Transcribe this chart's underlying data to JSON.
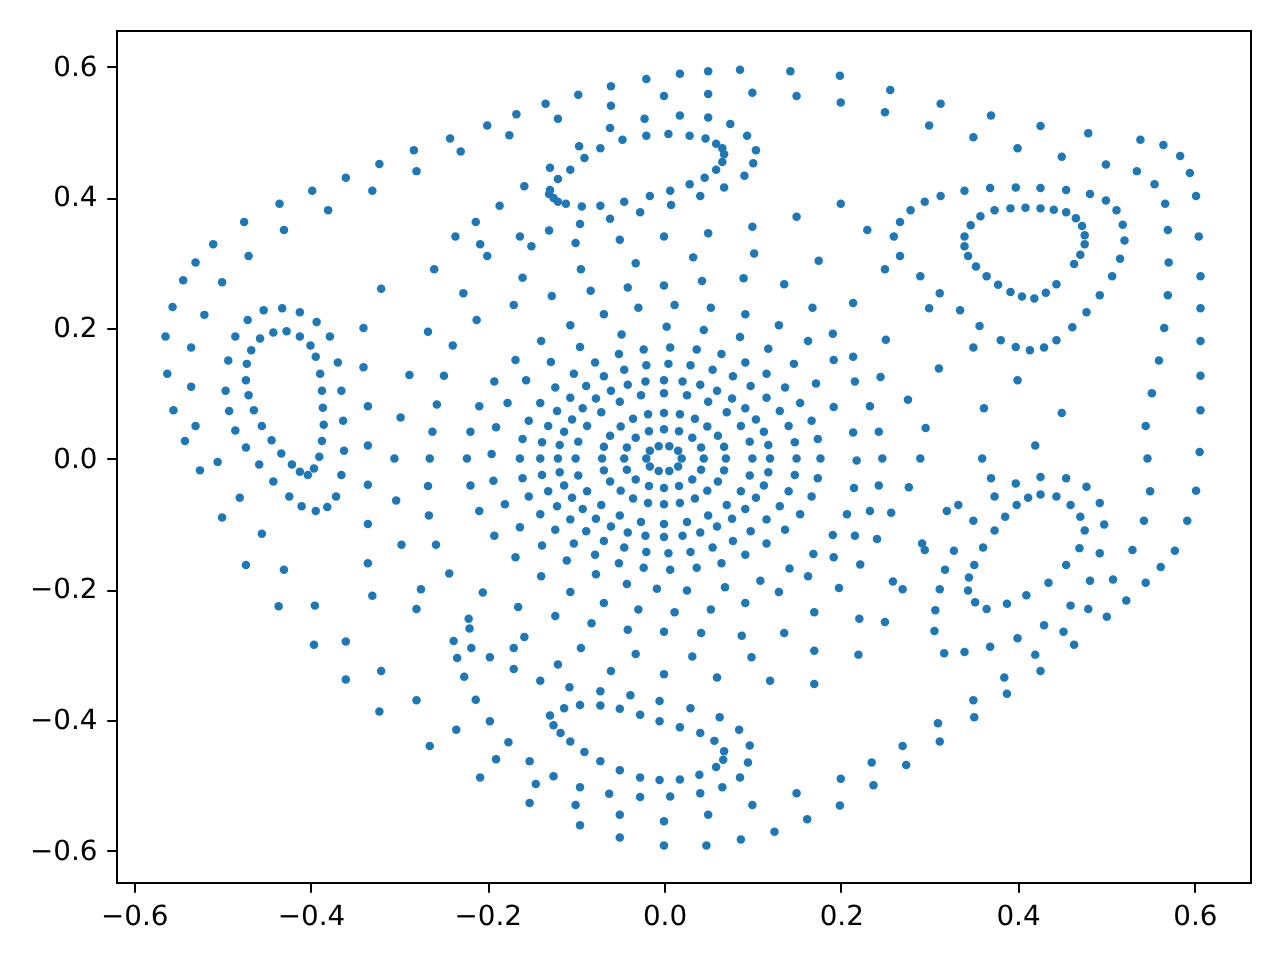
{
  "chart_data": {
    "type": "scatter",
    "marker": "circle",
    "grid": false,
    "xlim": [
      -0.62,
      0.663
    ],
    "ylim": [
      -0.648,
      0.656
    ],
    "xticks": [
      {
        "value": -0.6,
        "label": "−0.6"
      },
      {
        "value": -0.4,
        "label": "−0.4"
      },
      {
        "value": -0.2,
        "label": "−0.2"
      },
      {
        "value": 0,
        "label": "0.0"
      },
      {
        "value": 0.2,
        "label": "0.2"
      },
      {
        "value": 0.4,
        "label": "0.4"
      },
      {
        "value": 0.6,
        "label": "0.6"
      }
    ],
    "yticks": [
      {
        "value": -0.6,
        "label": "−0.6"
      },
      {
        "value": -0.4,
        "label": "−0.4"
      },
      {
        "value": -0.2,
        "label": "−0.2"
      },
      {
        "value": 0,
        "label": "0.0"
      },
      {
        "value": 0.2,
        "label": "0.2"
      },
      {
        "value": 0.4,
        "label": "0.4"
      },
      {
        "value": 0.6,
        "label": "0.6"
      }
    ],
    "series": [
      {
        "color": "#1f77b4",
        "x": [
          0.02,
          0.016,
          0.006,
          -0.006,
          -0.016,
          -0.02,
          -0.016,
          -0.006,
          0.006,
          0.016
        ],
        "values": [
          0,
          0.012,
          0.019,
          0.019,
          0.012,
          0,
          -0.012,
          -0.019,
          -0.019,
          -0.012
        ]
      },
      {
        "color": "#1f77b4",
        "x": [
          0.045,
          0.042,
          0.032,
          0.017,
          0,
          -0.017,
          -0.032,
          -0.042,
          -0.045,
          -0.042,
          -0.032,
          -0.017,
          0,
          0.017,
          0.032,
          0.042
        ],
        "values": [
          0,
          0.017,
          0.032,
          0.042,
          0.045,
          0.042,
          0.032,
          0.017,
          0,
          -0.017,
          -0.032,
          -0.042,
          -0.045,
          -0.042,
          -0.032,
          -0.017
        ]
      },
      {
        "color": "#1f77b4",
        "x": [
          0.07,
          0.068,
          0.061,
          0.049,
          0.035,
          0.018,
          0,
          -0.018,
          -0.035,
          -0.049,
          -0.061,
          -0.068,
          -0.07,
          -0.068,
          -0.061,
          -0.049,
          -0.035,
          -0.018,
          0,
          0.018,
          0.035,
          0.049,
          0.061,
          0.068
        ],
        "values": [
          0,
          0.018,
          0.035,
          0.049,
          0.061,
          0.068,
          0.07,
          0.068,
          0.061,
          0.049,
          0.035,
          0.018,
          0,
          -0.018,
          -0.035,
          -0.049,
          -0.061,
          -0.068,
          -0.07,
          -0.068,
          -0.061,
          -0.049,
          -0.035,
          -0.018
        ]
      },
      {
        "color": "#1f77b4",
        "x": [
          0.1,
          0.097,
          0.087,
          0.071,
          0.05,
          0.026,
          0,
          -0.026,
          -0.05,
          -0.071,
          -0.087,
          -0.097,
          -0.1,
          -0.097,
          -0.087,
          -0.071,
          -0.05,
          -0.026,
          0,
          0.026,
          0.05,
          0.071,
          0.087,
          0.097
        ],
        "values": [
          0,
          0.026,
          0.05,
          0.071,
          0.087,
          0.097,
          0.1,
          0.097,
          0.087,
          0.071,
          0.05,
          0.026,
          0,
          -0.026,
          -0.05,
          -0.071,
          -0.087,
          -0.097,
          -0.1,
          -0.097,
          -0.087,
          -0.071,
          -0.05,
          -0.026
        ]
      },
      {
        "color": "#1f77b4",
        "x": [
          0.12,
          0.118,
          0.113,
          0.104,
          0.092,
          0.077,
          0.06,
          0.041,
          0.021,
          0,
          -0.021,
          -0.041,
          -0.06,
          -0.077,
          -0.092,
          -0.104,
          -0.113,
          -0.118,
          -0.12,
          -0.118,
          -0.113,
          -0.104,
          -0.092,
          -0.077,
          -0.06,
          -0.041,
          -0.021,
          0,
          0.021,
          0.041,
          0.06,
          0.077,
          0.092,
          0.104,
          0.113,
          0.118
        ],
        "values": [
          0,
          0.021,
          0.041,
          0.06,
          0.077,
          0.092,
          0.104,
          0.113,
          0.118,
          0.12,
          0.118,
          0.113,
          0.104,
          0.092,
          0.077,
          0.06,
          0.041,
          0.021,
          0,
          -0.021,
          -0.041,
          -0.06,
          -0.077,
          -0.092,
          -0.104,
          -0.113,
          -0.118,
          -0.12,
          -0.118,
          -0.113,
          -0.104,
          -0.092,
          -0.077,
          -0.06,
          -0.041,
          -0.021
        ]
      },
      {
        "color": "#1f77b4",
        "x": [
          0.15,
          0.148,
          0.141,
          0.131,
          0.116,
          0.098,
          0.078,
          0.055,
          0.03,
          0.005,
          -0.02,
          -0.045,
          -0.068,
          -0.088,
          -0.106,
          -0.121,
          -0.131,
          -0.138,
          -0.14,
          -0.138,
          -0.131,
          -0.121,
          -0.106,
          -0.088,
          -0.068,
          -0.045,
          -0.02,
          0.005,
          0.03,
          0.055,
          0.078,
          0.098,
          0.116,
          0.131,
          0.141,
          0.148
        ],
        "values": [
          0,
          0.025,
          0.05,
          0.073,
          0.093,
          0.111,
          0.126,
          0.136,
          0.143,
          0.145,
          0.143,
          0.136,
          0.126,
          0.111,
          0.093,
          0.073,
          0.05,
          0.025,
          0,
          -0.025,
          -0.05,
          -0.073,
          -0.093,
          -0.111,
          -0.126,
          -0.136,
          -0.143,
          -0.145,
          -0.143,
          -0.136,
          -0.126,
          -0.111,
          -0.093,
          -0.073,
          -0.05,
          -0.025
        ]
      },
      {
        "color": "#1f77b4",
        "x": [
          0.177,
          0.174,
          0.167,
          0.154,
          0.137,
          0.116,
          0.092,
          0.065,
          0.037,
          0.007,
          -0.023,
          -0.051,
          -0.078,
          -0.102,
          -0.123,
          -0.14,
          -0.153,
          -0.16,
          -0.163,
          -0.16,
          -0.153,
          -0.14,
          -0.123,
          -0.102,
          -0.078,
          -0.051,
          -0.023,
          0.007,
          0.037,
          0.065,
          0.092,
          0.116,
          0.137,
          0.154,
          0.167,
          0.174
        ],
        "values": [
          0,
          0.03,
          0.058,
          0.085,
          0.109,
          0.13,
          0.147,
          0.16,
          0.167,
          0.17,
          0.167,
          0.16,
          0.147,
          0.13,
          0.109,
          0.085,
          0.058,
          0.03,
          0,
          -0.03,
          -0.058,
          -0.085,
          -0.109,
          -0.13,
          -0.147,
          -0.16,
          -0.167,
          -0.17,
          -0.167,
          -0.16,
          -0.147,
          -0.13,
          -0.109,
          -0.085,
          -0.058,
          -0.03
        ]
      },
      {
        "color": "#1f77b4",
        "x": [
          0.218,
          0.214,
          0.192,
          0.172,
          0.147,
          0.118,
          0.086,
          0.045,
          0.003,
          -0.048,
          -0.095,
          -0.128,
          -0.156,
          -0.177,
          -0.19,
          -0.195,
          -0.193,
          -0.18,
          -0.163,
          -0.138,
          -0.11,
          -0.077,
          -0.042,
          -0.008,
          0.026,
          0.069,
          0.109,
          0.142,
          0.169,
          0.191,
          0.207,
          0.215
        ],
        "values": [
          -0.003,
          0.04,
          0.079,
          0.115,
          0.145,
          0.168,
          0.186,
          0.197,
          0.202,
          0.19,
          0.171,
          0.148,
          0.12,
          0.085,
          0.048,
          0.007,
          -0.034,
          -0.07,
          -0.105,
          -0.133,
          -0.156,
          -0.177,
          -0.192,
          -0.199,
          -0.202,
          -0.197,
          -0.187,
          -0.168,
          -0.146,
          -0.117,
          -0.085,
          -0.045
        ]
      },
      {
        "color": "#1f77b4",
        "x": [
          0.247,
          0.243,
          0.233,
          0.216,
          0.192,
          0.163,
          0.13,
          0.092,
          0.053,
          0.012,
          -0.029,
          -0.068,
          -0.106,
          -0.139,
          -0.168,
          -0.192,
          -0.209,
          -0.219,
          -0.223,
          -0.219,
          -0.209,
          -0.192,
          -0.168,
          -0.139,
          -0.106,
          -0.068,
          -0.029,
          0.012,
          0.053,
          0.092,
          0.13,
          0.163,
          0.192,
          0.216,
          0.233,
          0.243
        ],
        "values": [
          0,
          0.041,
          0.08,
          0.118,
          0.151,
          0.18,
          0.204,
          0.221,
          0.231,
          0.235,
          0.231,
          0.221,
          0.204,
          0.18,
          0.151,
          0.118,
          0.08,
          0.041,
          0,
          -0.041,
          -0.08,
          -0.118,
          -0.151,
          -0.18,
          -0.204,
          -0.221,
          -0.231,
          -0.235,
          -0.231,
          -0.221,
          -0.204,
          -0.18,
          -0.151,
          -0.118,
          -0.08,
          -0.041
        ]
      },
      {
        "color": "#1f77b4",
        "x": [
          0.29,
          0.296,
          0.276,
          0.245,
          0.214,
          0.191,
          0.168,
          0.136,
          0.09,
          0.043,
          0,
          -0.041,
          -0.083,
          -0.127,
          -0.17,
          -0.212,
          -0.239,
          -0.249,
          -0.257,
          -0.262,
          -0.265,
          -0.267,
          -0.266,
          -0.258,
          -0.243,
          -0.205,
          -0.165,
          -0.123,
          -0.082,
          -0.041,
          0,
          0.042,
          0.088,
          0.136,
          0.17,
          0.198,
          0.222,
          0.241,
          0.257,
          0.277
        ],
        "values": [
          0,
          0.047,
          0.09,
          0.125,
          0.156,
          0.191,
          0.231,
          0.267,
          0.276,
          0.272,
          0.265,
          0.262,
          0.257,
          0.249,
          0.235,
          0.212,
          0.173,
          0.127,
          0.083,
          0.041,
          0,
          -0.042,
          -0.087,
          -0.132,
          -0.176,
          -0.205,
          -0.227,
          -0.241,
          -0.252,
          -0.262,
          -0.265,
          -0.267,
          -0.271,
          -0.267,
          -0.235,
          -0.198,
          -0.162,
          -0.123,
          -0.083,
          -0.044
        ]
      },
      {
        "color": "#1f77b4",
        "x": [
          0.36,
          0.362,
          0.311,
          0.251,
          0.214,
          0.175,
          0.102,
          0.033,
          -0.032,
          -0.094,
          -0.16,
          -0.227,
          -0.267,
          -0.288,
          -0.298,
          -0.305,
          -0.303,
          -0.297,
          -0.275,
          -0.221,
          -0.158,
          -0.094,
          -0.032,
          0.032,
          0.099,
          0.17,
          0.221,
          0.259,
          0.292,
          0.333
        ],
        "values": [
          0,
          0.077,
          0.138,
          0.182,
          0.238,
          0.303,
          0.314,
          0.308,
          0.299,
          0.29,
          0.277,
          0.253,
          0.194,
          0.128,
          0.063,
          0,
          -0.064,
          -0.132,
          -0.2,
          -0.245,
          -0.273,
          -0.29,
          -0.299,
          -0.303,
          -0.304,
          -0.294,
          -0.245,
          -0.188,
          -0.13,
          -0.071
        ]
      },
      {
        "color": "#1f77b4",
        "x": [
          0.45,
          0.4,
          0.35,
          0.3,
          0.25,
          0.23,
          0.2,
          0.15,
          0.1,
          0.05,
          0,
          -0.05,
          -0.1,
          -0.15,
          -0.2,
          -0.26,
          -0.32,
          -0.34,
          -0.34,
          -0.335,
          -0.335,
          -0.335,
          -0.335,
          -0.335,
          -0.33,
          -0.28,
          -0.22,
          -0.17,
          -0.12,
          -0.06,
          0,
          0.06,
          0.12,
          0.17,
          0.22,
          0.25,
          0.27,
          0.295,
          0.32,
          0.37,
          0.42
        ],
        "values": [
          0.07,
          0.12,
          0.17,
          0.23,
          0.29,
          0.35,
          0.39,
          0.37,
          0.355,
          0.345,
          0.34,
          0.335,
          0.33,
          0.325,
          0.31,
          0.29,
          0.26,
          0.2,
          0.14,
          0.08,
          0.02,
          -0.04,
          -0.1,
          -0.16,
          -0.21,
          -0.23,
          -0.26,
          -0.29,
          -0.315,
          -0.325,
          -0.33,
          -0.335,
          -0.34,
          -0.345,
          -0.3,
          -0.25,
          -0.2,
          -0.14,
          -0.08,
          -0.03,
          0.02
        ]
      },
      {
        "color": "#1f77b4",
        "x": [
          -0.129,
          -0.12,
          -0.106,
          -0.09,
          -0.072,
          -0.047,
          -0.02,
          0.005,
          0.029,
          0.047,
          0.059,
          0.066,
          0.068,
          0.066,
          0.059,
          0.046,
          0.029,
          0.007,
          -0.016,
          -0.045,
          -0.072,
          -0.093,
          -0.111,
          -0.12,
          -0.125,
          -0.13
        ],
        "values": [
          0.411,
          0.428,
          0.442,
          0.46,
          0.475,
          0.488,
          0.494,
          0.497,
          0.494,
          0.49,
          0.482,
          0.475,
          0.466,
          0.454,
          0.442,
          0.43,
          0.42,
          0.41,
          0.402,
          0.393,
          0.387,
          0.386,
          0.39,
          0.393,
          0.399,
          0.405
        ]
      },
      {
        "color": "#1f77b4",
        "x": [
          -0.236,
          -0.213,
          -0.186,
          -0.158,
          -0.129,
          -0.096,
          -0.061,
          -0.022,
          0.018,
          0.05,
          0.075,
          0.094,
          0.104,
          0.101,
          0.091,
          0.068,
          0.041,
          0.008,
          -0.027,
          -0.061,
          -0.095,
          -0.13,
          -0.163,
          -0.208
        ],
        "values": [
          0.34,
          0.362,
          0.387,
          0.417,
          0.445,
          0.478,
          0.506,
          0.52,
          0.525,
          0.522,
          0.512,
          0.494,
          0.472,
          0.452,
          0.433,
          0.415,
          0.402,
          0.388,
          0.377,
          0.367,
          0.359,
          0.349,
          0.34,
          0.328
        ]
      },
      {
        "color": "#1f77b4",
        "x": [
          0.34,
          0.347,
          0.358,
          0.374,
          0.392,
          0.409,
          0.426,
          0.441,
          0.455,
          0.466,
          0.473,
          0.476,
          0.476,
          0.471,
          0.464,
          0.444,
          0.432,
          0.419,
          0.405,
          0.392,
          0.378,
          0.365,
          0.353,
          0.344,
          0.34
        ],
        "values": [
          0.34,
          0.357,
          0.371,
          0.38,
          0.383,
          0.384,
          0.383,
          0.381,
          0.377,
          0.368,
          0.356,
          0.342,
          0.328,
          0.312,
          0.298,
          0.267,
          0.254,
          0.245,
          0.248,
          0.255,
          0.266,
          0.279,
          0.294,
          0.31,
          0.325
        ]
      },
      {
        "color": "#1f77b4",
        "x": [
          0.26,
          0.267,
          0.279,
          0.295,
          0.313,
          0.34,
          0.369,
          0.398,
          0.426,
          0.455,
          0.482,
          0.5,
          0.512,
          0.519,
          0.521,
          0.516,
          0.507,
          0.493,
          0.478,
          0.462,
          0.444,
          0.43,
          0.414,
          0.398,
          0.381,
          0.357,
          0.335,
          0.312,
          0.29,
          0.267
        ],
        "values": [
          0.34,
          0.362,
          0.38,
          0.393,
          0.402,
          0.41,
          0.414,
          0.415,
          0.414,
          0.411,
          0.405,
          0.395,
          0.38,
          0.358,
          0.334,
          0.306,
          0.279,
          0.25,
          0.224,
          0.201,
          0.181,
          0.17,
          0.166,
          0.171,
          0.181,
          0.203,
          0.227,
          0.253,
          0.279,
          0.31
        ]
      },
      {
        "color": "#1f77b4",
        "x": [
          0.426,
          0.444,
          0.46,
          0.471,
          0.476,
          0.47,
          0.455,
          0.435,
          0.41,
          0.388,
          0.365,
          0.352,
          0.344,
          0.345,
          0.351,
          0.361,
          0.374,
          0.386,
          0.399,
          0.412
        ],
        "values": [
          -0.055,
          -0.058,
          -0.071,
          -0.089,
          -0.11,
          -0.137,
          -0.163,
          -0.19,
          -0.209,
          -0.222,
          -0.23,
          -0.22,
          -0.202,
          -0.182,
          -0.163,
          -0.136,
          -0.11,
          -0.089,
          -0.071,
          -0.06
        ]
      },
      {
        "color": "#1f77b4",
        "x": [
          0.306,
          0.307,
          0.312,
          0.318,
          0.328,
          0.35,
          0.374,
          0.398,
          0.426,
          0.455,
          0.478,
          0.493,
          0.498,
          0.493,
          0.482,
          0.46,
          0.43,
          0.4,
          0.369,
          0.34,
          0.317
        ],
        "values": [
          -0.264,
          -0.232,
          -0.2,
          -0.17,
          -0.141,
          -0.095,
          -0.058,
          -0.038,
          -0.028,
          -0.03,
          -0.043,
          -0.068,
          -0.101,
          -0.145,
          -0.187,
          -0.225,
          -0.255,
          -0.275,
          -0.288,
          -0.296,
          -0.298
        ]
      },
      {
        "color": "#1f77b4",
        "x": [
          -0.129,
          -0.113,
          -0.095,
          -0.072,
          -0.05,
          -0.027,
          -0.005,
          0.018,
          0.041,
          0.057,
          0.068,
          0.067,
          0.059,
          0.04,
          0.018,
          -0.005,
          -0.027,
          -0.05,
          -0.072,
          -0.09,
          -0.106,
          -0.117,
          -0.125
        ],
        "values": [
          -0.393,
          -0.382,
          -0.377,
          -0.378,
          -0.383,
          -0.392,
          -0.402,
          -0.411,
          -0.42,
          -0.432,
          -0.448,
          -0.461,
          -0.472,
          -0.484,
          -0.491,
          -0.492,
          -0.488,
          -0.477,
          -0.463,
          -0.449,
          -0.433,
          -0.42,
          -0.408
        ]
      },
      {
        "color": "#1f77b4",
        "x": [
          -0.238,
          -0.218,
          -0.197,
          -0.17,
          -0.14,
          -0.107,
          -0.072,
          -0.038,
          -0.005,
          0.03,
          0.063,
          0.085,
          0.097,
          0.095,
          0.086,
          0.066,
          0.041,
          0.007,
          -0.027,
          -0.062,
          -0.095,
          -0.125,
          -0.152,
          -0.176,
          -0.197,
          -0.213,
          -0.226,
          -0.234
        ],
        "values": [
          -0.279,
          -0.29,
          -0.304,
          -0.322,
          -0.34,
          -0.35,
          -0.356,
          -0.362,
          -0.371,
          -0.382,
          -0.396,
          -0.415,
          -0.439,
          -0.465,
          -0.488,
          -0.503,
          -0.512,
          -0.517,
          -0.518,
          -0.513,
          -0.503,
          -0.486,
          -0.463,
          -0.434,
          -0.402,
          -0.369,
          -0.334,
          -0.305
        ]
      },
      {
        "color": "#1f77b4",
        "x": [
          -0.442,
          -0.427,
          -0.412,
          -0.4,
          -0.394,
          -0.389,
          -0.387,
          -0.386,
          -0.385,
          -0.387,
          -0.39,
          -0.396,
          -0.403,
          -0.412,
          -0.421,
          -0.433,
          -0.444,
          -0.455,
          -0.464,
          -0.47,
          -0.473,
          -0.472,
          -0.467,
          -0.457
        ],
        "values": [
          0.193,
          0.195,
          0.187,
          0.173,
          0.156,
          0.13,
          0.104,
          0.078,
          0.052,
          0.027,
          0.003,
          -0.015,
          -0.025,
          -0.02,
          -0.009,
          0.008,
          0.028,
          0.05,
          0.074,
          0.097,
          0.12,
          0.145,
          0.166,
          0.184
        ]
      },
      {
        "color": "#1f77b4",
        "x": [
          -0.496,
          -0.493,
          -0.485,
          -0.471,
          -0.453,
          -0.432,
          -0.412,
          -0.393,
          -0.378,
          -0.369,
          -0.365,
          -0.363,
          -0.362,
          -0.365,
          -0.371,
          -0.381,
          -0.394,
          -0.41,
          -0.424,
          -0.442,
          -0.458,
          -0.473,
          -0.485,
          -0.492
        ],
        "values": [
          0.104,
          0.15,
          0.187,
          0.212,
          0.227,
          0.23,
          0.224,
          0.209,
          0.187,
          0.147,
          0.104,
          0.058,
          0.012,
          -0.025,
          -0.058,
          -0.074,
          -0.08,
          -0.073,
          -0.058,
          -0.035,
          -0.009,
          0.017,
          0.043,
          0.073
        ]
      },
      {
        "color": "#1f77b4",
        "x": [
          0,
          0.05,
          0.1,
          0.15,
          0.2,
          0.25,
          0.3,
          0.35,
          0.4,
          0.45,
          0.5,
          0.535,
          0.555,
          0.567,
          0.57,
          0.571,
          0.57,
          0.566,
          0.56,
          0.552,
          0.545,
          0.547,
          0.55,
          0.543,
          0.53,
          0.508,
          0.48,
          0.452,
          0.42,
          0.385,
          0.35,
          0.31,
          0.27
        ],
        "values": [
          0.555,
          0.558,
          0.56,
          0.555,
          0.545,
          0.53,
          0.51,
          0.492,
          0.475,
          0.462,
          0.45,
          0.44,
          0.42,
          0.39,
          0.35,
          0.3,
          0.25,
          0.2,
          0.15,
          0.1,
          0.05,
          0,
          -0.05,
          -0.095,
          -0.14,
          -0.185,
          -0.23,
          -0.265,
          -0.3,
          -0.335,
          -0.37,
          -0.405,
          -0.44
        ]
      },
      {
        "color": "#1f77b4",
        "x": [
          0.235,
          0.2,
          0.15,
          0.1,
          0.05,
          0,
          -0.05,
          -0.1,
          -0.145,
          -0.19,
          -0.235,
          -0.28,
          -0.32,
          -0.36,
          -0.395,
          -0.43,
          -0.455,
          -0.48,
          -0.505,
          -0.53,
          -0.535,
          -0.535,
          -0.52,
          -0.5,
          -0.47,
          -0.43,
          -0.38,
          -0.33,
          -0.28,
          -0.23,
          -0.175,
          -0.12,
          -0.06
        ],
        "values": [
          -0.465,
          -0.49,
          -0.512,
          -0.53,
          -0.545,
          -0.555,
          -0.545,
          -0.53,
          -0.498,
          -0.46,
          -0.415,
          -0.37,
          -0.325,
          -0.28,
          -0.225,
          -0.17,
          -0.115,
          -0.06,
          -0.005,
          0.05,
          0.11,
          0.17,
          0.22,
          0.27,
          0.31,
          0.35,
          0.38,
          0.41,
          0.44,
          0.47,
          0.495,
          0.52,
          0.54
        ]
      },
      {
        "color": "#1f77b4",
        "x": [
          0.578,
          0.592,
          0.602,
          0.606,
          0.607,
          0.607,
          0.607,
          0.607,
          0.607,
          0.605,
          0.602,
          0.595,
          0.584,
          0.565,
          0.539,
          0.48,
          0.426,
          0.37,
          0.313,
          0.256,
          0.199,
          0.143,
          0.086,
          0.05,
          0.018,
          -0.02,
          -0.06,
          -0.097,
          -0.134,
          -0.167,
          -0.2,
          -0.242,
          -0.283,
          -0.322,
          -0.36,
          -0.398,
          -0.435,
          -0.475
        ],
        "values": [
          -0.141,
          -0.095,
          -0.049,
          0.01,
          0.074,
          0.127,
          0.18,
          0.23,
          0.279,
          0.34,
          0.402,
          0.437,
          0.463,
          0.48,
          0.488,
          0.498,
          0.509,
          0.525,
          0.543,
          0.564,
          0.586,
          0.593,
          0.595,
          0.593,
          0.589,
          0.581,
          0.57,
          0.557,
          0.543,
          0.527,
          0.51,
          0.49,
          0.472,
          0.451,
          0.43,
          0.41,
          0.39,
          0.362
        ]
      },
      {
        "color": "#1f77b4",
        "x": [
          -0.51,
          -0.53,
          -0.544,
          -0.556,
          -0.564,
          -0.562,
          -0.555,
          -0.542,
          -0.525,
          -0.5,
          -0.473,
          -0.436,
          -0.396,
          -0.36,
          -0.322,
          -0.265,
          -0.208,
          -0.152,
          -0.095,
          -0.05,
          0,
          0.048,
          0.087,
          0.125,
          0.162,
          0.199,
          0.237,
          0.274,
          0.312,
          0.351,
          0.388,
          0.426,
          0.464,
          0.501,
          0.523,
          0.545,
          0.562
        ],
        "values": [
          0.328,
          0.3,
          0.273,
          0.232,
          0.187,
          0.13,
          0.074,
          0.027,
          -0.018,
          -0.09,
          -0.163,
          -0.226,
          -0.285,
          -0.338,
          -0.387,
          -0.44,
          -0.488,
          -0.527,
          -0.561,
          -0.58,
          -0.592,
          -0.592,
          -0.583,
          -0.571,
          -0.552,
          -0.531,
          -0.5,
          -0.469,
          -0.433,
          -0.396,
          -0.36,
          -0.325,
          -0.285,
          -0.242,
          -0.217,
          -0.19,
          -0.166
        ]
      }
    ]
  }
}
